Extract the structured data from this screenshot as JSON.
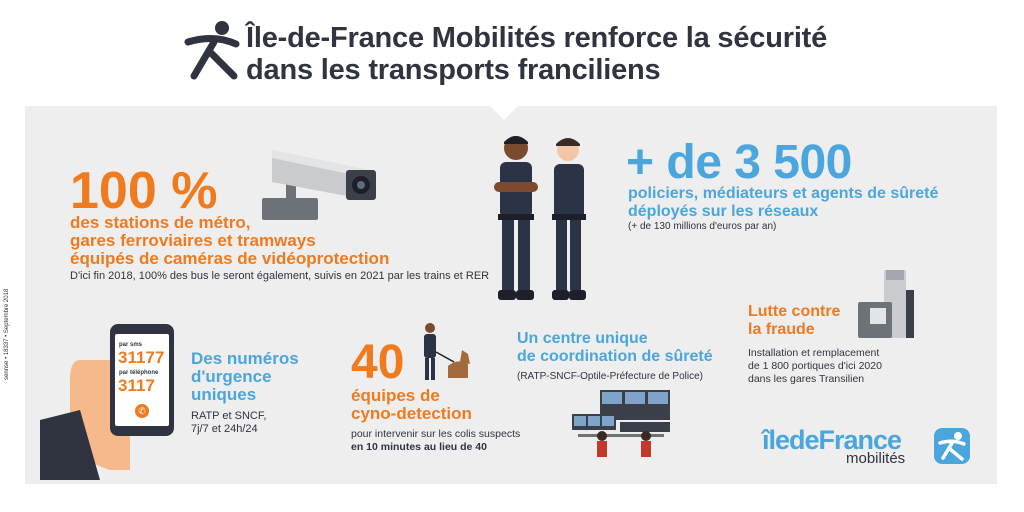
{
  "header": {
    "title_line1": "Île-de-France Mobilités renforce la sécurité",
    "title_line2": "dans les transports franciliens"
  },
  "video_protection": {
    "percent": "100 %",
    "line1": "des stations de métro,",
    "line2": "gares ferroviaires et tramways",
    "line3": "équipés de caméras de vidéoprotection",
    "note": "D'ici fin 2018, 100% des bus le seront également, suivis en 2021 par les trains et RER"
  },
  "agents": {
    "big": "+ de 3 500",
    "line1": "policiers, médiateurs et agents de sûreté",
    "line2": "déployés sur les réseaux",
    "note": "(+ de 130 millions d'euros par an)"
  },
  "fraud": {
    "line1": "Lutte contre",
    "line2": "la fraude",
    "note1": "Installation et remplacement",
    "note2": "de 1 800 portiques d'ici 2020",
    "note3": "dans les gares Transilien"
  },
  "emergency": {
    "phone_label_sms": "par sms",
    "phone_sms": "31177",
    "phone_label_tel": "par téléphone",
    "phone_tel": "3117",
    "line1": "Des numéros",
    "line2": "d'urgence",
    "line3": "uniques",
    "note1": "RATP et SNCF,",
    "note2": "7j/7 et 24h/24"
  },
  "cyno": {
    "number": "40",
    "line1": "équipes de",
    "line2": "cyno-detection",
    "note1": "pour intervenir sur les colis suspects",
    "note2": "en 10 minutes au lieu de 40"
  },
  "centre": {
    "line1": "Un centre unique",
    "line2": "de coordination de sûreté",
    "note": "(RATP-SNCF-Optile-Préfecture de Police)"
  },
  "brand": {
    "name": "îledeFrance",
    "sub": "mobilités"
  },
  "vertical_credit": "sennse • 18337 • Septembre 2018",
  "colors": {
    "orange": "#f07a1e",
    "blue": "#4aa6dc",
    "dark": "#2f3440",
    "panel": "#eeeeee"
  }
}
